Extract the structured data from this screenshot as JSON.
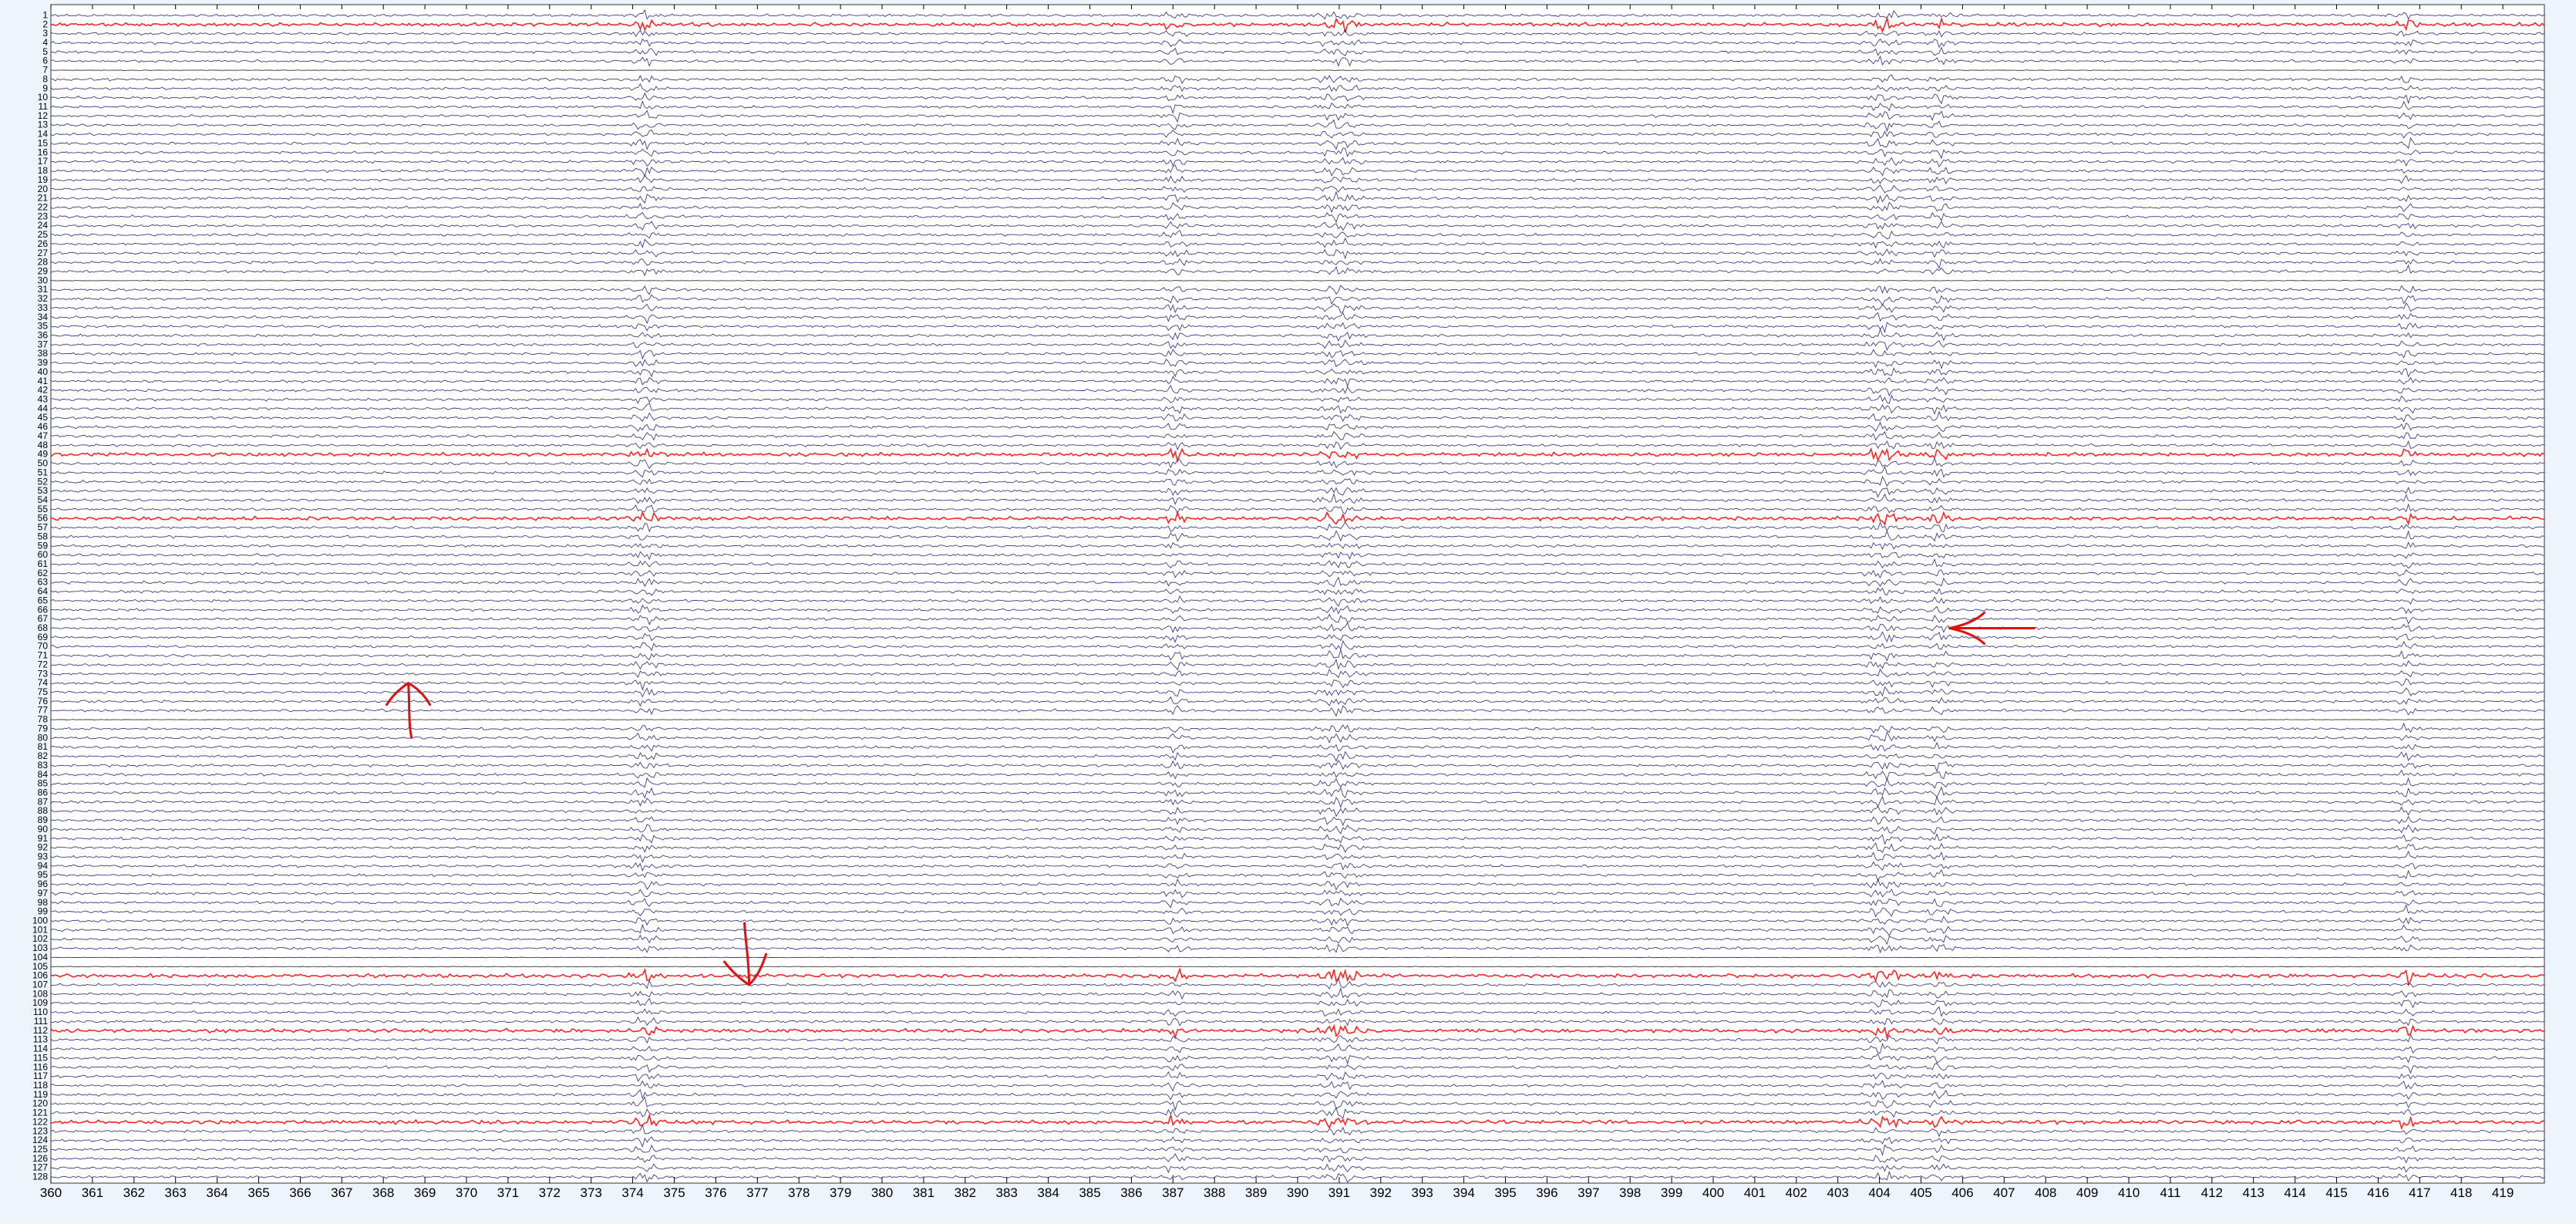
{
  "chart_data": {
    "type": "line",
    "title": "",
    "xlabel": "",
    "ylabel": "",
    "xlim": [
      360,
      420
    ],
    "x_ticks": [
      360,
      361,
      362,
      363,
      364,
      365,
      366,
      367,
      368,
      369,
      370,
      371,
      372,
      373,
      374,
      375,
      376,
      377,
      378,
      379,
      380,
      381,
      382,
      383,
      384,
      385,
      386,
      387,
      388,
      389,
      390,
      391,
      392,
      393,
      394,
      395,
      396,
      397,
      398,
      399,
      400,
      401,
      402,
      403,
      404,
      405,
      406,
      407,
      408,
      409,
      410,
      411,
      412,
      413,
      414,
      415,
      416,
      417,
      418,
      419
    ],
    "channel_count": 128,
    "channel_labels": [
      "1",
      "2",
      "3",
      "4",
      "5",
      "6",
      "7",
      "8",
      "9",
      "10",
      "11",
      "12",
      "13",
      "14",
      "15",
      "16",
      "17",
      "18",
      "19",
      "20",
      "21",
      "22",
      "23",
      "24",
      "25",
      "26",
      "27",
      "28",
      "29",
      "30",
      "31",
      "32",
      "33",
      "34",
      "35",
      "36",
      "37",
      "38",
      "39",
      "40",
      "41",
      "42",
      "43",
      "44",
      "45",
      "46",
      "47",
      "48",
      "49",
      "50",
      "51",
      "52",
      "53",
      "54",
      "55",
      "56",
      "57",
      "58",
      "59",
      "60",
      "61",
      "62",
      "63",
      "64",
      "65",
      "66",
      "67",
      "68",
      "69",
      "70",
      "71",
      "72",
      "73",
      "74",
      "75",
      "76",
      "77",
      "78",
      "79",
      "80",
      "81",
      "82",
      "83",
      "84",
      "85",
      "86",
      "87",
      "88",
      "89",
      "90",
      "91",
      "92",
      "93",
      "94",
      "95",
      "96",
      "97",
      "98",
      "99",
      "100",
      "101",
      "102",
      "103",
      "104",
      "105",
      "106",
      "107",
      "108",
      "109",
      "110",
      "111",
      "112",
      "113",
      "114",
      "115",
      "116",
      "117",
      "118",
      "119",
      "120",
      "121",
      "122",
      "123",
      "124",
      "125",
      "126",
      "127",
      "128"
    ],
    "highlighted_channels": [
      2,
      49,
      56,
      106,
      112,
      122
    ],
    "flat_channels": [
      7,
      30,
      78,
      104,
      105
    ],
    "burst_intervals": [
      [
        374.1,
        374.5
      ],
      [
        386.9,
        387.2
      ],
      [
        390.6,
        391.4
      ],
      [
        403.8,
        404.4
      ],
      [
        405.3,
        405.6
      ],
      [
        416.6,
        416.8
      ]
    ],
    "colors": {
      "trace": "#1a1a7a",
      "highlight": "#ff0000",
      "flat": "#222222",
      "annotation": "#e01010",
      "background": "#ffffff",
      "page": "#eef4fc"
    },
    "annotations": [
      {
        "kind": "arrow",
        "direction": "left",
        "x": 405.5,
        "channel": 68
      },
      {
        "kind": "arrow",
        "direction": "up",
        "x": 368.6,
        "channel": 74
      },
      {
        "kind": "arrow",
        "direction": "down",
        "x": 376.8,
        "channel": 107
      }
    ]
  }
}
